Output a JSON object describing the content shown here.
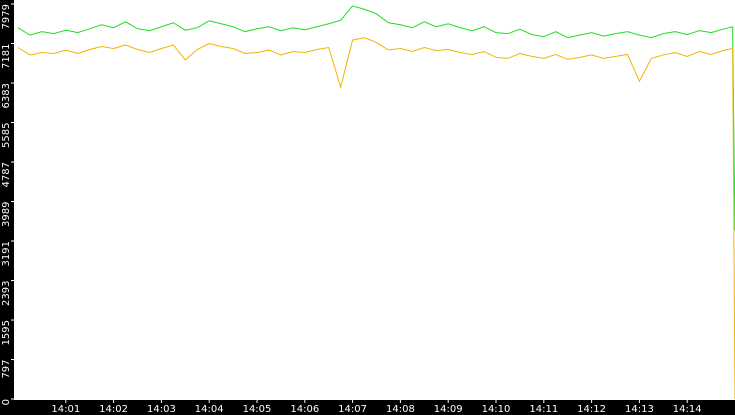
{
  "chart_data": {
    "type": "line",
    "x": [
      840,
      840.25,
      840.5,
      840.75,
      841,
      841.25,
      841.5,
      841.75,
      842,
      842.25,
      842.5,
      842.75,
      843,
      843.25,
      843.5,
      843.75,
      844,
      844.25,
      844.5,
      844.75,
      845,
      845.25,
      845.5,
      845.75,
      846,
      846.25,
      846.5,
      846.75,
      847,
      847.25,
      847.5,
      847.75,
      848,
      848.25,
      848.5,
      848.75,
      849,
      849.25,
      849.5,
      849.75,
      850,
      850.25,
      850.5,
      850.75,
      851,
      851.25,
      851.5,
      851.75,
      852,
      852.25,
      852.5,
      852.75,
      853,
      853.25,
      853.5,
      853.75,
      854,
      854.25,
      854.5,
      854.75,
      854.95,
      855
    ],
    "series": [
      {
        "color": "#22dd22",
        "values": [
          7500,
          7350,
          7420,
          7380,
          7450,
          7400,
          7480,
          7560,
          7500,
          7620,
          7480,
          7440,
          7520,
          7600,
          7450,
          7500,
          7640,
          7580,
          7520,
          7420,
          7480,
          7520,
          7440,
          7500,
          7460,
          7520,
          7580,
          7650,
          7940,
          7870,
          7780,
          7600,
          7560,
          7500,
          7620,
          7520,
          7580,
          7500,
          7440,
          7520,
          7400,
          7380,
          7470,
          7360,
          7320,
          7420,
          7300,
          7350,
          7400,
          7330,
          7380,
          7420,
          7350,
          7300,
          7380,
          7420,
          7360,
          7440,
          7400,
          7470,
          7520,
          3400
        ]
      },
      {
        "color": "#f0b400",
        "values": [
          7100,
          6950,
          7000,
          6980,
          7050,
          6980,
          7060,
          7120,
          7080,
          7150,
          7060,
          7000,
          7080,
          7150,
          6850,
          7060,
          7180,
          7120,
          7080,
          6980,
          7000,
          7050,
          6950,
          7020,
          7000,
          7060,
          7100,
          6300,
          7250,
          7300,
          7200,
          7050,
          7080,
          7020,
          7100,
          7040,
          7060,
          7000,
          6960,
          7020,
          6900,
          6880,
          6980,
          6920,
          6880,
          6960,
          6860,
          6900,
          6950,
          6880,
          6920,
          6960,
          6420,
          6880,
          6950,
          7000,
          6920,
          7020,
          6960,
          7040,
          7080,
          0
        ]
      }
    ],
    "xlim": [
      840,
      855
    ],
    "xticks": [
      {
        "value": 841,
        "label": "14:01"
      },
      {
        "value": 842,
        "label": "14:02"
      },
      {
        "value": 843,
        "label": "14:03"
      },
      {
        "value": 844,
        "label": "14:04"
      },
      {
        "value": 845,
        "label": "14:05"
      },
      {
        "value": 846,
        "label": "14:06"
      },
      {
        "value": 847,
        "label": "14:07"
      },
      {
        "value": 848,
        "label": "14:08"
      },
      {
        "value": 849,
        "label": "14:09"
      },
      {
        "value": 850,
        "label": "14:10"
      },
      {
        "value": 851,
        "label": "14:11"
      },
      {
        "value": 852,
        "label": "14:12"
      },
      {
        "value": 853,
        "label": "14:13"
      },
      {
        "value": 854,
        "label": "14:14"
      }
    ],
    "ylim": [
      0,
      7979
    ],
    "yticks": [
      0,
      797,
      1595,
      2393,
      3191,
      3989,
      4787,
      5585,
      6383,
      7181,
      7979
    ]
  }
}
